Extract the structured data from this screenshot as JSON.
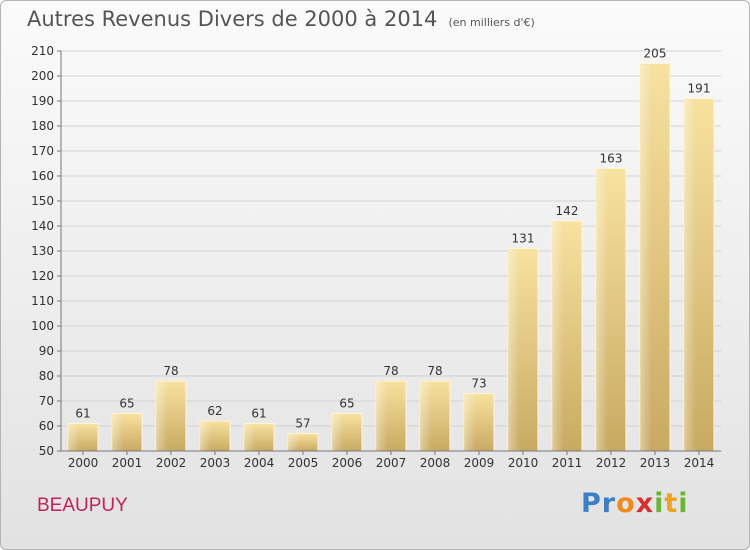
{
  "chart_data": {
    "type": "bar",
    "title": "Autres Revenus Divers de 2000 à 2014",
    "subtitle": "(en milliers d'€)",
    "categories": [
      "2000",
      "2001",
      "2002",
      "2003",
      "2004",
      "2005",
      "2006",
      "2007",
      "2008",
      "2009",
      "2010",
      "2011",
      "2012",
      "2013",
      "2014"
    ],
    "values": [
      61,
      65,
      78,
      62,
      61,
      57,
      65,
      78,
      78,
      73,
      131,
      142,
      163,
      205,
      191
    ],
    "ylim": [
      50,
      210
    ],
    "yticks": [
      50,
      60,
      70,
      80,
      90,
      100,
      110,
      120,
      130,
      140,
      150,
      160,
      170,
      180,
      190,
      200,
      210
    ],
    "grid": true,
    "bar_color": "#e6c77a",
    "data_labels": true
  },
  "footer": {
    "commune": "BEAUPUY",
    "brand_letters": [
      {
        "ch": "P",
        "color": "#3d7fc4"
      },
      {
        "ch": "r",
        "color": "#3d7fc4"
      },
      {
        "ch": "o",
        "color": "#f08a1d"
      },
      {
        "ch": "x",
        "color": "#d62f2f"
      },
      {
        "ch": "i",
        "color": "#6bb536"
      },
      {
        "ch": "t",
        "color": "#f0a21d"
      },
      {
        "ch": "i",
        "color": "#6bb536"
      }
    ]
  }
}
